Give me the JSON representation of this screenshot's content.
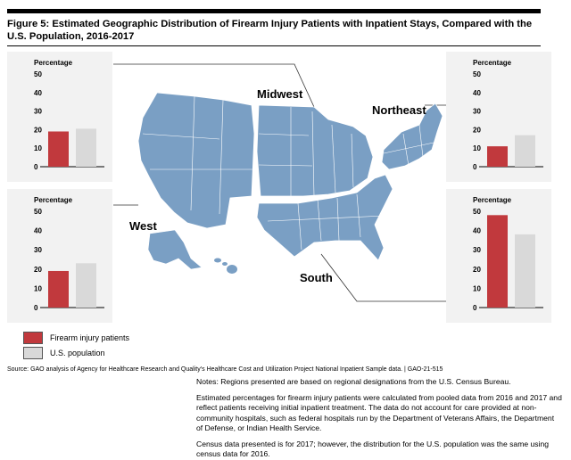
{
  "title": "Figure 5: Estimated Geographic Distribution of Firearm Injury Patients with Inpatient Stays, Compared with the U.S. Population, 2016-2017",
  "colors": {
    "firearm": "#c1393d",
    "population": "#d9d9d9",
    "map": "#7a9fc4",
    "panel_bg": "#f2f2f2"
  },
  "chart_data": [
    {
      "type": "bar",
      "region": "Midwest",
      "ylabel": "Percentage",
      "ylim": [
        0,
        50
      ],
      "yticks": [
        "0",
        "10",
        "20",
        "30",
        "40",
        "50"
      ],
      "series": [
        {
          "name": "Firearm injury patients",
          "values": [
            19
          ]
        },
        {
          "name": "U.S. population",
          "values": [
            20.5
          ]
        }
      ]
    },
    {
      "type": "bar",
      "region": "Northeast",
      "ylabel": "Percentage",
      "ylim": [
        0,
        50
      ],
      "yticks": [
        "0",
        "10",
        "20",
        "30",
        "40",
        "50"
      ],
      "series": [
        {
          "name": "Firearm injury patients",
          "values": [
            11
          ]
        },
        {
          "name": "U.S. population",
          "values": [
            17
          ]
        }
      ]
    },
    {
      "type": "bar",
      "region": "West",
      "ylabel": "Percentage",
      "ylim": [
        0,
        50
      ],
      "yticks": [
        "0",
        "10",
        "20",
        "30",
        "40",
        "50"
      ],
      "series": [
        {
          "name": "Firearm injury patients",
          "values": [
            19
          ]
        },
        {
          "name": "U.S. population",
          "values": [
            23
          ]
        }
      ]
    },
    {
      "type": "bar",
      "region": "South",
      "ylabel": "Percentage",
      "ylim": [
        0,
        50
      ],
      "yticks": [
        "0",
        "10",
        "20",
        "30",
        "40",
        "50"
      ],
      "series": [
        {
          "name": "Firearm injury patients",
          "values": [
            48
          ]
        },
        {
          "name": "U.S. population",
          "values": [
            38
          ]
        }
      ]
    }
  ],
  "regions": {
    "midwest": "Midwest",
    "northeast": "Northeast",
    "west": "West",
    "south": "South"
  },
  "legend": {
    "firearm": "Firearm injury patients",
    "population": "U.S. population"
  },
  "source": "Source: GAO analysis of Agency for Healthcare Research and Quality’s Healthcare Cost and Utilization Project National Inpatient Sample data.  |  GAO-21-515",
  "notes": [
    "Notes: Regions presented are based on regional designations from the U.S. Census Bureau.",
    "Estimated percentages for firearm injury patients were calculated from pooled data from 2016 and 2017 and reflect patients receiving initial inpatient treatment. The data do not account for care provided at non-community hospitals, such as federal hospitals run by the Department of Veterans Affairs, the Department of Defense, or Indian Health Service.",
    "Census data presented is for 2017; however, the distribution for the U.S. population was the same using census data for 2016."
  ]
}
